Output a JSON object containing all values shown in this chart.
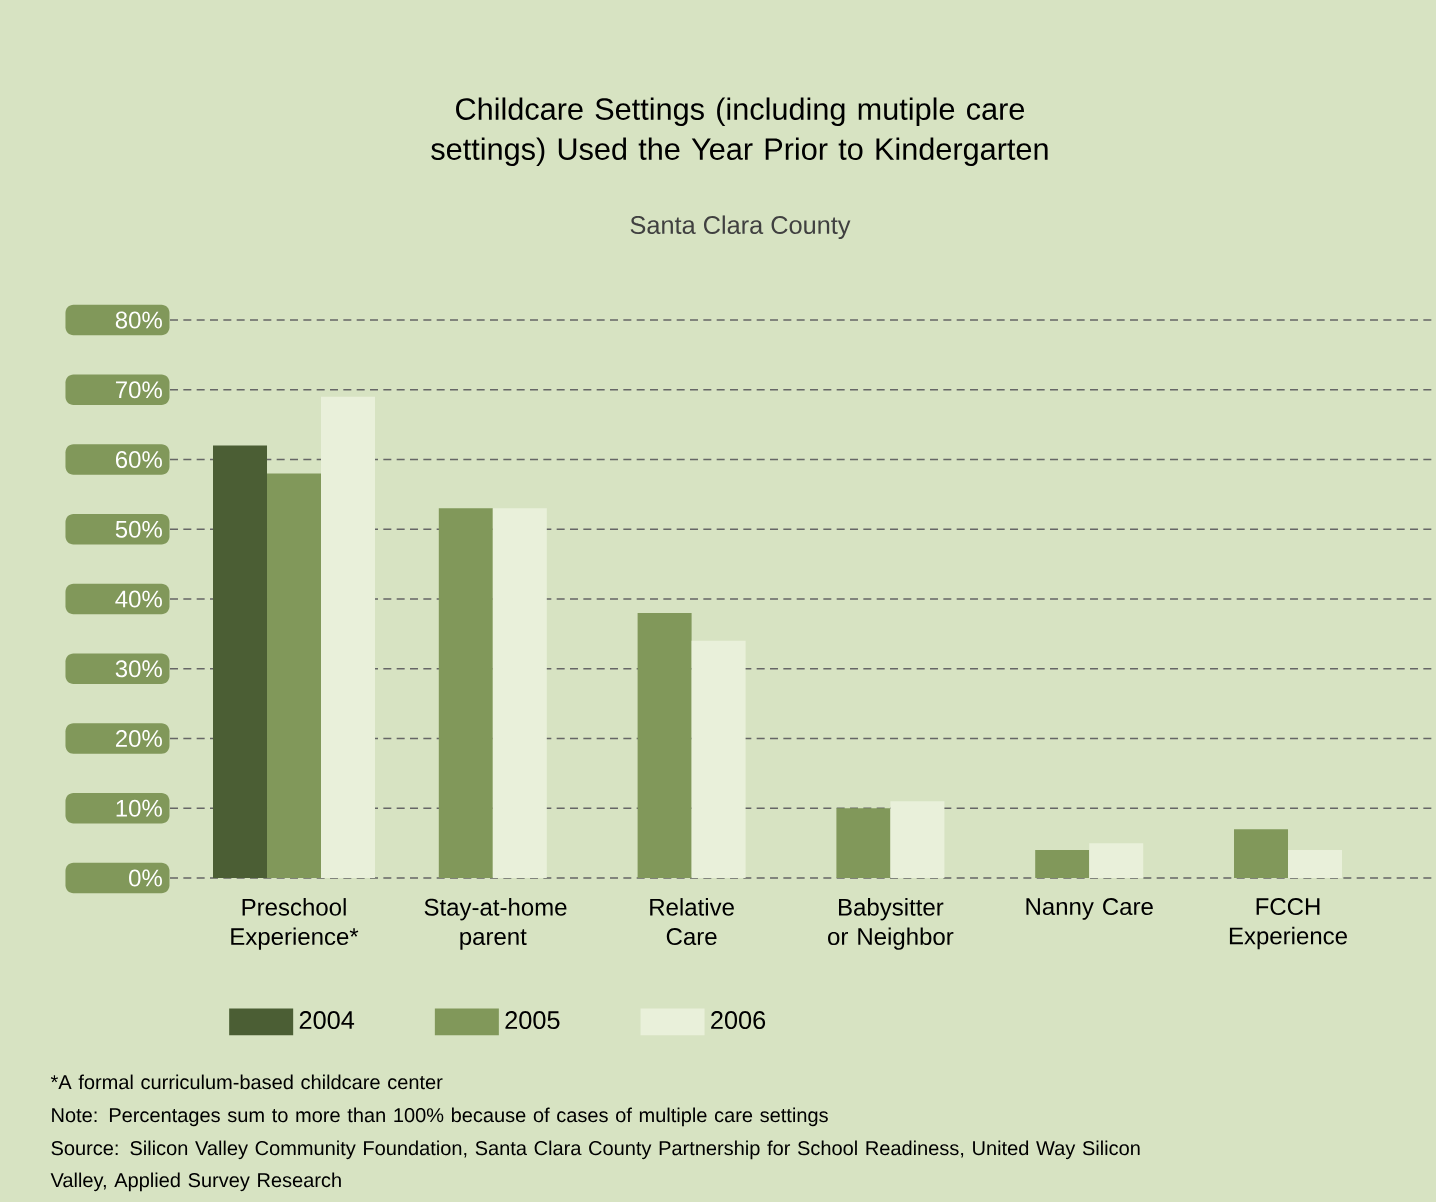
{
  "chart_data": {
    "type": "bar",
    "title": "Childcare Settings (including mutiple care settings) Used the Year Prior to Kindergarten",
    "subtitle": "Santa Clara County",
    "categories": [
      "Preschool Experience*",
      "Stay-at-home parent",
      "Relative Care",
      "Babysitter or Neighbor",
      "Nanny Care",
      "FCCH Experience"
    ],
    "series": [
      {
        "name": "2004",
        "color": "#4b5e34",
        "values": [
          62,
          null,
          null,
          null,
          null,
          null
        ]
      },
      {
        "name": "2005",
        "color": "#81985a",
        "values": [
          58,
          53,
          38,
          10,
          4,
          7
        ]
      },
      {
        "name": "2006",
        "color": "#e9f0da",
        "values": [
          69,
          53,
          34,
          11,
          5,
          4
        ]
      }
    ],
    "ylim": [
      0,
      80
    ],
    "yticks": [
      {
        "value": 0,
        "label": "0%"
      },
      {
        "value": 10,
        "label": "10%"
      },
      {
        "value": 20,
        "label": "20%"
      },
      {
        "value": 30,
        "label": "30%"
      },
      {
        "value": 40,
        "label": "40%"
      },
      {
        "value": 50,
        "label": "50%"
      },
      {
        "value": 60,
        "label": "60%"
      },
      {
        "value": 70,
        "label": "70%"
      },
      {
        "value": 80,
        "label": "80%"
      }
    ],
    "grid": "y",
    "legend": "bottom",
    "annotations": [
      "*A formal curriculum-based childcare center",
      "Note: Percentages sum to more than 100% because of cases of multiple care settings",
      "Source: Silicon Valley Community Foundation, Santa Clara County Partnership for School Readiness, United Way Silicon Valley, Applied Survey Research"
    ]
  }
}
